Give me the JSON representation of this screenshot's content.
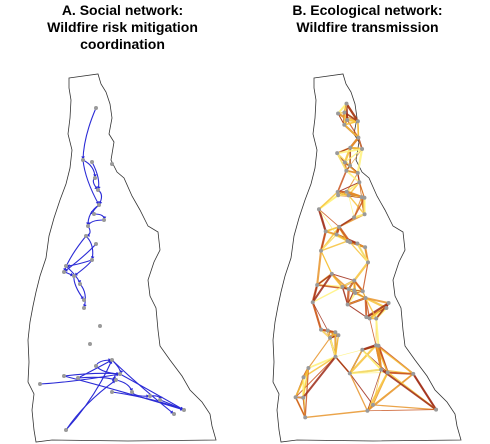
{
  "panels": [
    {
      "id": "A",
      "title_line1": "A. Social network:",
      "title_line2": "Wildfire risk mitigation",
      "title_line3": "coordination",
      "edge_color": "#2b2bd6",
      "node_color": "#9a9a9a"
    },
    {
      "id": "B",
      "title_line1": "B. Ecological network:",
      "title_line2": "Wildfire transmission",
      "title_line3": "",
      "edge_colors": [
        "#fff27a",
        "#f7c23a",
        "#e8942a",
        "#c9541e",
        "#9e2a16"
      ],
      "node_color": "#9a9a9a"
    }
  ]
}
